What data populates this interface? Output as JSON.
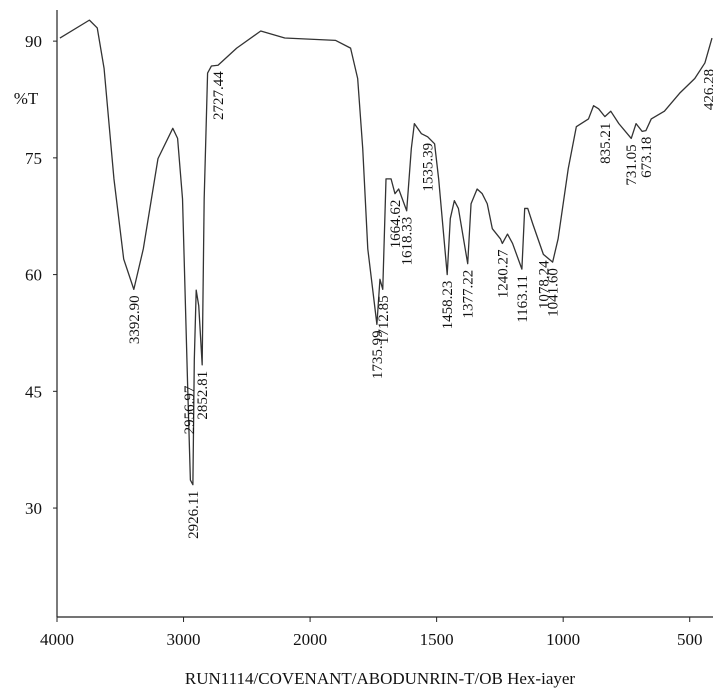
{
  "chart_data": {
    "type": "line",
    "xlabel": "RUN1114/COVENANT/ABODUNRIN-T/OB Hex-iayer",
    "ylabel": "%T",
    "xlim": [
      4000,
      408
    ],
    "ylim": [
      16,
      94
    ],
    "xticks": [
      4000,
      3000,
      2000,
      1500,
      1000,
      500
    ],
    "yticks": [
      30,
      45,
      60,
      75,
      90
    ],
    "x_reversed": true,
    "x_scale_change": 2000,
    "x_scale_ratio": 2,
    "grid": false,
    "color": "#333333",
    "x": [
      3977,
      3744,
      3682,
      3628,
      3550,
      3473,
      3392.9,
      3318,
      3202,
      3085,
      3047,
      3008,
      2969,
      2946,
      2926.11,
      2915,
      2900,
      2880,
      2852.81,
      2837,
      2810,
      2780,
      2727.44,
      2580,
      2390,
      2200,
      1900,
      1840,
      1812,
      1792,
      1772,
      1735.99,
      1724,
      1712.85,
      1700,
      1680,
      1664.62,
      1650,
      1618.33,
      1600,
      1588,
      1560,
      1535.39,
      1508,
      1492,
      1458.23,
      1446,
      1430,
      1414,
      1377.22,
      1364,
      1340,
      1320,
      1300,
      1280,
      1248,
      1240.27,
      1220,
      1200,
      1163.11,
      1152,
      1140,
      1120,
      1078.24,
      1041.6,
      1020,
      980,
      948,
      900,
      880,
      860,
      835.21,
      812,
      780,
      731.05,
      712,
      688,
      673.18,
      652,
      600,
      540,
      480,
      440,
      412
    ],
    "values": [
      90.4,
      92.7,
      91.7,
      86.5,
      72.3,
      62,
      58.1,
      63.3,
      74.9,
      78.8,
      77.5,
      69.7,
      46.5,
      33.6,
      33,
      49,
      58,
      56,
      48.4,
      69.7,
      85.9,
      86.8,
      86.9,
      89.1,
      91.3,
      90.4,
      90.1,
      89.1,
      85.2,
      76.2,
      63.3,
      53.6,
      59.4,
      58.1,
      72.3,
      72.3,
      70.4,
      71,
      68.2,
      76.2,
      79.4,
      78.1,
      77.7,
      76.8,
      72.3,
      60,
      67.2,
      69.5,
      68.5,
      61.4,
      69.1,
      71,
      70.4,
      69.1,
      65.9,
      64.6,
      64,
      65.2,
      64,
      60.7,
      68.5,
      68.5,
      66.5,
      62.6,
      61.6,
      64.6,
      73.6,
      79,
      80,
      81.7,
      81.3,
      80.3,
      81,
      79.4,
      77.5,
      79.4,
      78.4,
      78.5,
      80,
      81,
      83.3,
      85.2,
      87.2,
      90.4
    ],
    "peaks": [
      {
        "x": 3392.9,
        "y": 58.1,
        "label": "3392.90"
      },
      {
        "x": 2956.97,
        "y": 46.5,
        "label": "2956.97"
      },
      {
        "x": 2926.11,
        "y": 33,
        "label": "2926.11"
      },
      {
        "x": 2852.81,
        "y": 48.4,
        "label": "2852.81"
      },
      {
        "x": 2727.44,
        "y": 86.9,
        "label": "2727.44"
      },
      {
        "x": 1735.99,
        "y": 53.6,
        "label": "1735.99"
      },
      {
        "x": 1712.85,
        "y": 58.1,
        "label": "1712.85"
      },
      {
        "x": 1664.62,
        "y": 70.4,
        "label": "1664.62"
      },
      {
        "x": 1618.33,
        "y": 68.2,
        "label": "1618.33"
      },
      {
        "x": 1535.39,
        "y": 77.7,
        "label": "1535.39"
      },
      {
        "x": 1458.23,
        "y": 60,
        "label": "1458.23"
      },
      {
        "x": 1377.22,
        "y": 61.4,
        "label": "1377.22"
      },
      {
        "x": 1240.27,
        "y": 64,
        "label": "1240.27"
      },
      {
        "x": 1163.11,
        "y": 60.7,
        "label": "1163.11"
      },
      {
        "x": 1078.24,
        "y": 62.6,
        "label": "1078.24"
      },
      {
        "x": 1041.6,
        "y": 61.6,
        "label": "1041.60"
      },
      {
        "x": 835.21,
        "y": 80.3,
        "label": "835.21"
      },
      {
        "x": 731.05,
        "y": 77.5,
        "label": "731.05"
      },
      {
        "x": 673.18,
        "y": 78.5,
        "label": "673.18"
      },
      {
        "x": 426.28,
        "y": 87.2,
        "label": "426.28"
      }
    ]
  }
}
